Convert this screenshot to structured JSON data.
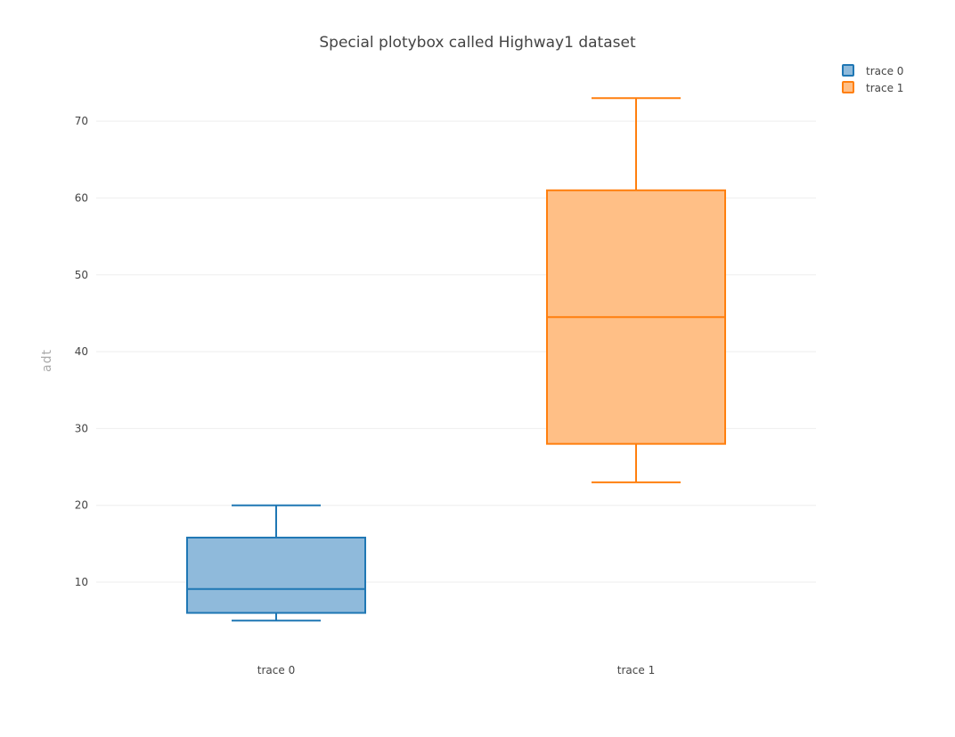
{
  "chart_data": {
    "type": "box",
    "title": "Special plotybox called Highway1 dataset",
    "xlabel": "",
    "ylabel": "adt",
    "categories": [
      "trace 0",
      "trace 1"
    ],
    "yticks": [
      10,
      20,
      30,
      40,
      50,
      60,
      70
    ],
    "ylim": [
      1.2,
      76.5
    ],
    "grid": true,
    "legend_position": "top-right",
    "series": [
      {
        "name": "trace 0",
        "color": "#1f77b4",
        "fill": "#8fbadb",
        "min": 5.0,
        "q1": 6.0,
        "median": 9.1,
        "q3": 15.8,
        "max": 20.0
      },
      {
        "name": "trace 1",
        "color": "#ff7f0e",
        "fill": "#ffbf86",
        "min": 23.0,
        "q1": 28.0,
        "median": 44.5,
        "q3": 61.0,
        "max": 73.0
      }
    ]
  }
}
